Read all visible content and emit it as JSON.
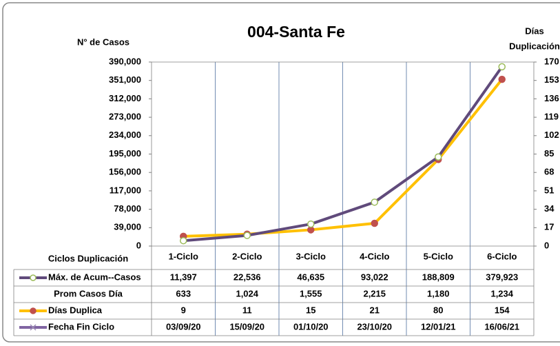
{
  "chart_data": {
    "type": "line",
    "title": "004-Santa Fe",
    "y_label": "N° de Casos",
    "y2_label": [
      "Días",
      "Duplicación"
    ],
    "categories": [
      "1-Ciclo",
      "2-Ciclo",
      "3-Ciclo",
      "4-Ciclo",
      "5-Ciclo",
      "6-Ciclo"
    ],
    "series": [
      {
        "name": "Máx. de Acum--Casos",
        "color": "#604a7b",
        "marker_color": "#9bbb59",
        "marker_fill": "#ffffff",
        "values": [
          11397,
          22536,
          46635,
          93022,
          188809,
          379923
        ],
        "value_labels": [
          "11,397",
          "22,536",
          "46,635",
          "93,022",
          "188,809",
          "379,923"
        ]
      },
      {
        "name": "Días Duplica",
        "color": "#ffc000",
        "marker_color": "#c0504d",
        "marker_fill": "#c0504d",
        "axis": "y2",
        "values": [
          9,
          11,
          15,
          21,
          80,
          154
        ]
      }
    ],
    "table": {
      "header": "Ciclos Duplicación",
      "rows": [
        {
          "name": "Prom Casos Día",
          "values": [
            633,
            1024,
            1555,
            2215,
            1180,
            1234
          ],
          "value_labels": [
            "633",
            "1,024",
            "1,555",
            "2,215",
            "1,180",
            "1,234"
          ]
        },
        {
          "name": "Fecha Fin Ciclo",
          "color": "#8064a2",
          "values": [
            "03/09/20",
            "15/09/20",
            "01/10/20",
            "23/10/20",
            "12/01/21",
            "16/06/21"
          ]
        }
      ]
    },
    "ylim": [
      0,
      390000
    ],
    "yticks": [
      0,
      {
        "value": 39000,
        "label": "39,000"
      },
      {
        "value": 78000,
        "label": "78,000"
      },
      {
        "value": 117000,
        "label": "117,000"
      },
      {
        "value": 156000,
        "label": "156,000"
      },
      {
        "value": 195000,
        "label": "195,000"
      },
      {
        "value": 234000,
        "label": "234,000"
      },
      {
        "value": 273000,
        "label": "273,000"
      },
      {
        "value": 312000,
        "label": "312,000"
      },
      {
        "value": 351000,
        "label": "351,000"
      },
      {
        "value": 390000,
        "label": "390,000"
      }
    ],
    "y2lim": [
      0,
      170
    ],
    "y2ticks": [
      0,
      17,
      34,
      51,
      68,
      85,
      102,
      119,
      136,
      153,
      170
    ]
  }
}
